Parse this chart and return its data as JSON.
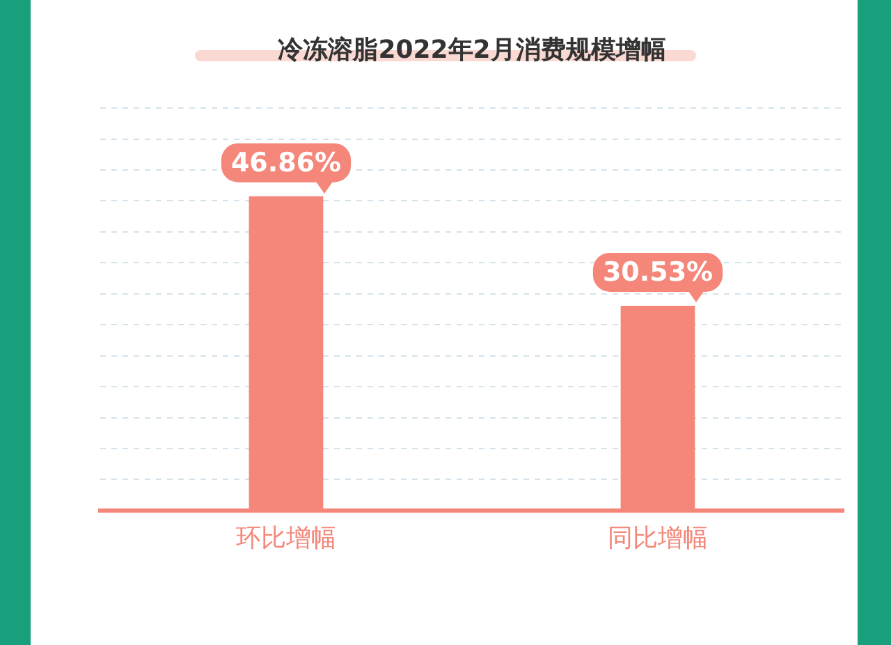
{
  "chart_data": {
    "type": "bar",
    "title": "冷冻溶脂2022年2月消费规模增幅",
    "categories": [
      "环比增幅",
      "同比增幅"
    ],
    "values": [
      46.86,
      30.53
    ],
    "value_labels": [
      "46.86%",
      "30.53%"
    ],
    "color": "#f4877a",
    "grid": "y",
    "legend": false
  }
}
